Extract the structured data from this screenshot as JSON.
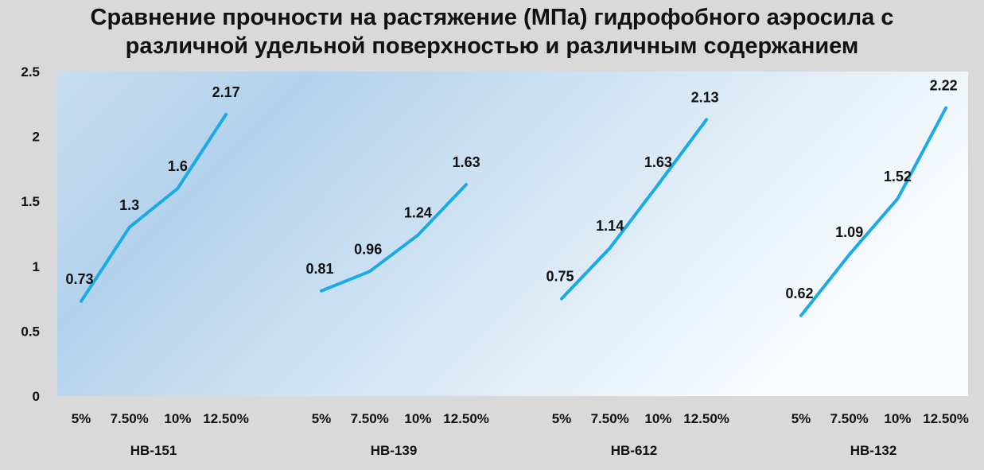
{
  "title": {
    "line1": "Сравнение прочности на растяжение (МПа) гидрофобного аэросила с",
    "line2": "различной удельной поверхностью и различным содержанием"
  },
  "colors": {
    "line": "#1aabe6",
    "background": "#d9d9d9"
  },
  "chart_data": {
    "type": "line",
    "title": "Сравнение прочности на растяжение (МПа) гидрофобного аэросила с различной удельной поверхностью и различным содержанием",
    "ylim": [
      0,
      2.5
    ],
    "yticks": [
      "0",
      "0.5",
      "1",
      "1.5",
      "2",
      "2.5"
    ],
    "categories": [
      "5%",
      "7.50%",
      "10%",
      "12.50%"
    ],
    "grid": false,
    "legend": "none",
    "groups": [
      {
        "name": "HB-151",
        "values": [
          0.73,
          1.3,
          1.6,
          2.17
        ],
        "labels": [
          "0.73",
          "1.3",
          "1.6",
          "2.17"
        ]
      },
      {
        "name": "HB-139",
        "values": [
          0.81,
          0.96,
          1.24,
          1.63
        ],
        "labels": [
          "0.81",
          "0.96",
          "1.24",
          "1.63"
        ]
      },
      {
        "name": "HB-612",
        "values": [
          0.75,
          1.14,
          1.63,
          2.13
        ],
        "labels": [
          "0.75",
          "1.14",
          "1.63",
          "2.13"
        ]
      },
      {
        "name": "HB-132",
        "values": [
          0.62,
          1.09,
          1.52,
          2.22
        ],
        "labels": [
          "0.62",
          "1.09",
          "1.52",
          "2.22"
        ]
      }
    ]
  }
}
